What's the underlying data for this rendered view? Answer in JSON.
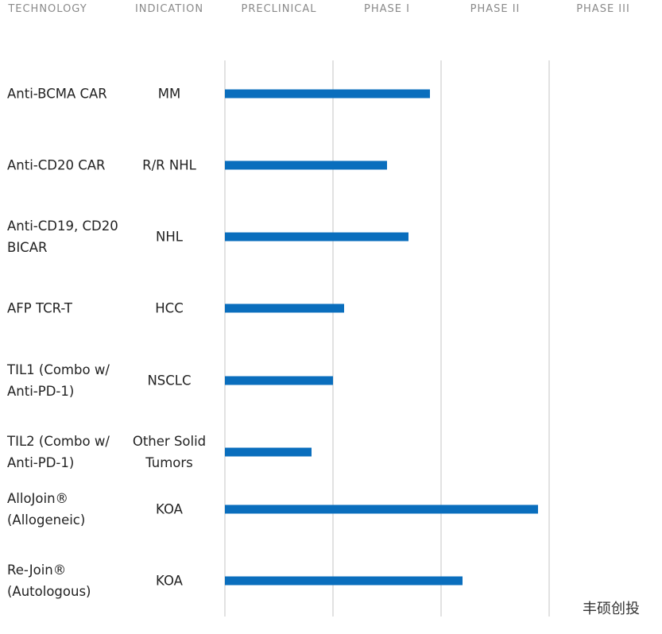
{
  "chart_data": {
    "type": "pipeline",
    "columns": [
      "TECHNOLOGY",
      "INDICATION"
    ],
    "phases": [
      "PRECLINICAL",
      "PHASE I",
      "PHASE II",
      "PHASE III"
    ],
    "categories": [
      "Anti-BCMA CAR",
      "Anti-CD20 CAR",
      "Anti-CD19, CD20 BICAR",
      "AFP TCR-T",
      "TIL1 (Combo w/ Anti-PD-1)",
      "TIL2 (Combo w/ Anti-PD-1)",
      "AlloJoin® (Allogeneic)",
      "Re-Join® (Autologous)"
    ],
    "indications": [
      "MM",
      "R/R NHL",
      "NHL",
      "HCC",
      "NSCLC",
      "Other Solid Tumors",
      "KOA",
      "KOA"
    ],
    "values": [
      1.9,
      1.5,
      1.7,
      1.1,
      1.0,
      0.8,
      2.9,
      2.2
    ],
    "color": "#0a6ebd",
    "xlim": [
      0,
      4
    ],
    "xticks": [
      0,
      1,
      2,
      3
    ],
    "grid": true,
    "watermark": "丰硕创投"
  }
}
